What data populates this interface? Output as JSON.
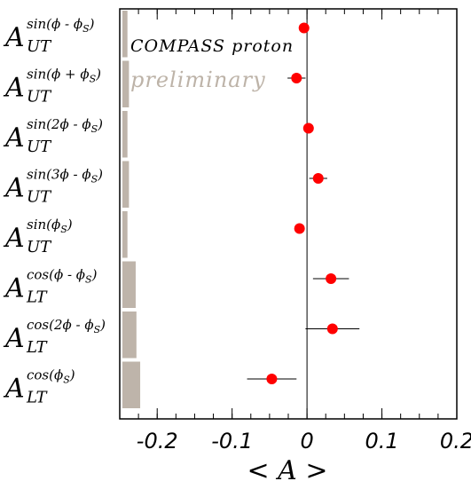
{
  "chart_data": {
    "type": "scatter",
    "orientation": "horizontal",
    "xlabel": "< A >",
    "xlim": [
      -0.25,
      0.2
    ],
    "xticks": [
      "-0.2",
      "-0.1",
      "0",
      "0.1",
      "0.2"
    ],
    "xtick_values": [
      -0.2,
      -0.1,
      0,
      0.1,
      0.2
    ],
    "annotations": [
      "COMPASS proton",
      "preliminary"
    ],
    "colors": {
      "point": "#ff0000",
      "systematic_band": "#beb4aa",
      "errorbar": "#000000"
    },
    "rows": [
      {
        "main": "A",
        "sub": "UT",
        "sup": "sin(ϕ - ϕ",
        "sup_sub": "S",
        "sup_close": ")",
        "value": -0.004,
        "err_low": 0.004,
        "err_high": 0.004,
        "sys": 0.002
      },
      {
        "main": "A",
        "sub": "UT",
        "sup": "sin(ϕ + ϕ",
        "sup_sub": "S",
        "sup_close": ")",
        "value": -0.014,
        "err_low": 0.012,
        "err_high": 0.012,
        "sys": 0.004
      },
      {
        "main": "A",
        "sub": "UT",
        "sup": "sin(2ϕ - ϕ",
        "sup_sub": "S",
        "sup_close": ")",
        "value": 0.002,
        "err_low": 0.004,
        "err_high": 0.004,
        "sys": 0.002
      },
      {
        "main": "A",
        "sub": "UT",
        "sup": "sin(3ϕ - ϕ",
        "sup_sub": "S",
        "sup_close": ")",
        "value": 0.015,
        "err_low": 0.012,
        "err_high": 0.012,
        "sys": 0.004
      },
      {
        "main": "A",
        "sub": "UT",
        "sup": "sin(ϕ",
        "sup_sub": "S",
        "sup_close": ")",
        "value": -0.01,
        "err_low": 0.003,
        "err_high": 0.003,
        "sys": 0.002
      },
      {
        "main": "A",
        "sub": "LT",
        "sup": "cos(ϕ - ϕ",
        "sup_sub": "S",
        "sup_close": ")",
        "value": 0.032,
        "err_low": 0.024,
        "err_high": 0.024,
        "sys": 0.013
      },
      {
        "main": "A",
        "sub": "LT",
        "sup": "cos(2ϕ - ϕ",
        "sup_sub": "S",
        "sup_close": ")",
        "value": 0.034,
        "err_low": 0.036,
        "err_high": 0.036,
        "sys": 0.014
      },
      {
        "main": "A",
        "sub": "LT",
        "sup": "cos(ϕ",
        "sup_sub": "S",
        "sup_close": ")",
        "value": -0.047,
        "err_low": 0.033,
        "err_high": 0.033,
        "sys": 0.019
      }
    ]
  }
}
